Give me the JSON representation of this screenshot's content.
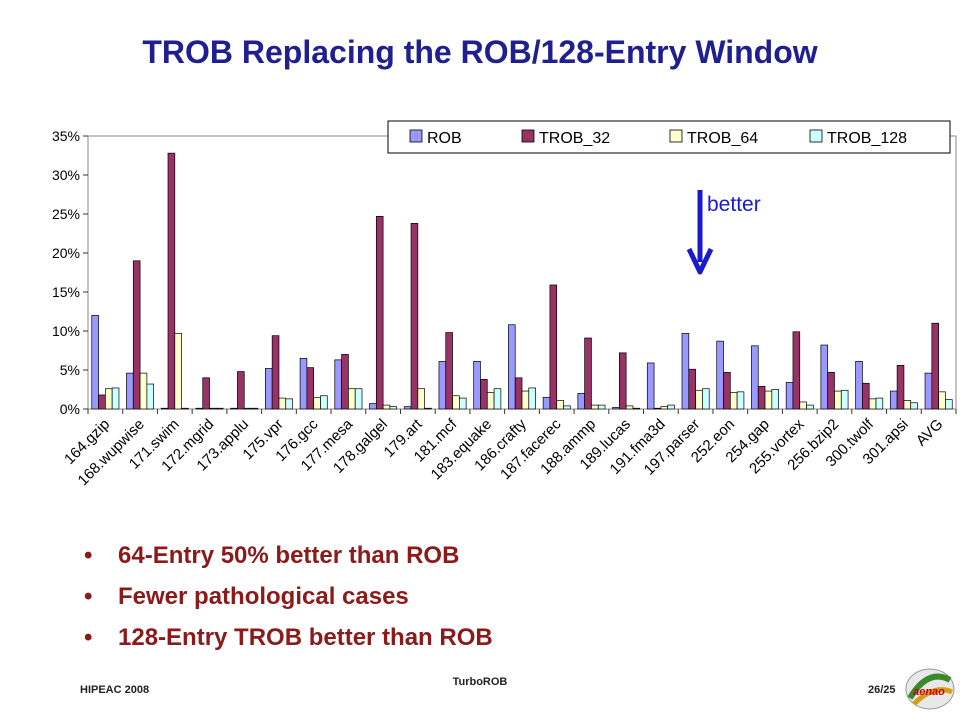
{
  "slide": {
    "title": "TROB Replacing the ROB/128-Entry Window",
    "bullets": [
      "64-Entry 50% better than ROB",
      "Fewer pathological cases",
      "128-Entry TROB better than ROB"
    ],
    "footer_left": "HIPEAC 2008",
    "footer_center": "TurboROB",
    "page_number": "26/25",
    "logo_text": "aenao"
  },
  "chart_data": {
    "type": "bar",
    "title": "",
    "xlabel": "",
    "ylabel": "",
    "ylim": [
      0,
      35
    ],
    "yticks": [
      "0%",
      "5%",
      "10%",
      "15%",
      "20%",
      "25%",
      "30%",
      "35%"
    ],
    "grid": false,
    "legend": "top-right",
    "annotation": "better",
    "categories": [
      "164.gzip",
      "168.wupwise",
      "171.swim",
      "172.mgrid",
      "173.applu",
      "175.vpr",
      "176.gcc",
      "177.mesa",
      "178.galgel",
      "179.art",
      "181.mcf",
      "183.equake",
      "186.crafty",
      "187.facerec",
      "188.ammp",
      "189.lucas",
      "191.fma3d",
      "197.parser",
      "252.eon",
      "254.gap",
      "255.vortex",
      "256.bzip2",
      "300.twolf",
      "301.apsi",
      "AVG"
    ],
    "series": [
      {
        "name": "ROB",
        "color": "#9999ff",
        "values": [
          12.0,
          4.6,
          0.1,
          0.1,
          0.1,
          5.2,
          6.5,
          6.3,
          0.7,
          0.3,
          6.1,
          6.1,
          10.8,
          1.5,
          2.0,
          0.2,
          5.9,
          9.7,
          8.7,
          8.1,
          3.4,
          8.2,
          6.1,
          2.3,
          4.6
        ]
      },
      {
        "name": "TROB_32",
        "color": "#993366",
        "values": [
          1.8,
          19.0,
          32.8,
          4.0,
          4.8,
          9.4,
          5.3,
          7.0,
          24.7,
          23.8,
          9.8,
          3.8,
          4.0,
          15.9,
          9.1,
          7.2,
          0.1,
          5.1,
          4.7,
          2.9,
          9.9,
          4.7,
          3.3,
          5.6,
          11.0
        ]
      },
      {
        "name": "TROB_64",
        "color": "#ffffcc",
        "values": [
          2.6,
          4.6,
          9.7,
          0.1,
          0.1,
          1.4,
          1.5,
          2.6,
          0.5,
          2.6,
          1.7,
          2.1,
          2.3,
          1.1,
          0.5,
          0.4,
          0.3,
          2.4,
          2.1,
          2.3,
          0.9,
          2.3,
          1.3,
          1.1,
          2.2
        ]
      },
      {
        "name": "TROB_128",
        "color": "#ccffff",
        "values": [
          2.7,
          3.2,
          0.1,
          0.1,
          0.1,
          1.3,
          1.7,
          2.6,
          0.3,
          0.1,
          1.4,
          2.6,
          2.7,
          0.4,
          0.5,
          0.1,
          0.5,
          2.6,
          2.2,
          2.5,
          0.5,
          2.4,
          1.4,
          0.8,
          1.2
        ]
      }
    ]
  }
}
